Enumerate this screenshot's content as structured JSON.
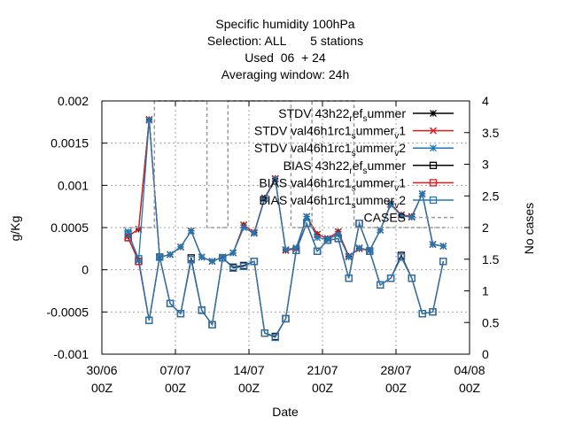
{
  "chart_data": {
    "type": "line",
    "title_lines": [
      "Specific humidity 100hPa",
      "Selection: ALL       5 stations",
      "Used  06  + 24",
      "Averaging window: 24h"
    ],
    "xlabel": "Date",
    "ylabel": "g/Kg",
    "y2label": "No cases",
    "x_ticks": [
      {
        "day": 0,
        "line1": "30/06",
        "line2": "00Z"
      },
      {
        "day": 7,
        "line1": "07/07",
        "line2": "00Z"
      },
      {
        "day": 14,
        "line1": "14/07",
        "line2": "00Z"
      },
      {
        "day": 21,
        "line1": "21/07",
        "line2": "00Z"
      },
      {
        "day": 28,
        "line1": "28/07",
        "line2": "00Z"
      },
      {
        "day": 35,
        "line1": "04/08",
        "line2": "00Z"
      }
    ],
    "xlim": [
      0,
      35
    ],
    "ylim": [
      -0.001,
      0.002
    ],
    "y_ticks": [
      "-0.001",
      "-0.0005",
      "0",
      "0.0005",
      "0.001",
      "0.0015",
      "0.002"
    ],
    "y2lim": [
      0,
      4
    ],
    "y2_ticks": [
      "0",
      "0.5",
      "1",
      "1.5",
      "2",
      "2.5",
      "3",
      "3.5",
      "4"
    ],
    "grid": true,
    "legend_position": "top-right",
    "x": [
      2.5,
      3.5,
      4.5,
      5.5,
      6.5,
      7.5,
      8.5,
      9.5,
      10.5,
      11.5,
      12.5,
      13.5,
      14.5,
      15.5,
      16.5,
      17.5,
      18.5,
      19.5,
      20.5,
      21.5,
      22.5,
      23.5,
      24.5,
      25.5,
      26.5,
      27.5,
      28.5,
      29.5,
      30.5,
      31.5,
      32.5
    ],
    "series": [
      {
        "name": "STDV 43h22_ref_summer",
        "label_parts": [
          "STDV 43h22",
          "r",
          "ef",
          "s",
          "ummer"
        ],
        "color": "#000000",
        "marker": "star",
        "axis": "y",
        "values": [
          0.0004,
          0.00048,
          0.00178,
          0.00015,
          0.00018,
          0.00027,
          0.00046,
          0.00015,
          0.0001,
          0.00015,
          0.0002,
          0.00053,
          0.00044,
          0.00085,
          0.00108,
          0.00023,
          0.00025,
          0.00063,
          0.00042,
          0.00037,
          0.00045,
          0.00016,
          0.00025,
          0.00023,
          0.00047,
          0.00078,
          0.00065,
          0.00063,
          0.0009,
          0.0003,
          0.00028
        ]
      },
      {
        "name": "STDV val46h1rc1_summer_v1",
        "label_parts": [
          "STDV val46h1rc1",
          "s",
          "ummer",
          "v",
          "1"
        ],
        "color": "#e41a1c",
        "marker": "x",
        "axis": "y",
        "values": [
          0.0004,
          0.00048,
          0.00178,
          0.00015,
          0.00018,
          0.00027,
          0.00046,
          0.00015,
          0.0001,
          0.00015,
          0.0002,
          0.00053,
          0.00044,
          0.00085,
          0.00108,
          0.00023,
          0.00025,
          0.00063,
          0.00042,
          0.00037,
          0.00045,
          0.00016,
          0.00025,
          0.00023,
          0.00047,
          0.00078,
          0.00065,
          0.00063,
          0.0009,
          0.0003,
          0.00028
        ]
      },
      {
        "name": "STDV val46h1rc1_summer_v2",
        "label_parts": [
          "STDV val46h1rc1",
          "s",
          "ummer",
          "v",
          "2"
        ],
        "color": "#1f78b4",
        "marker": "star",
        "axis": "y",
        "values": [
          0.00045,
          0.00011,
          0.00177,
          0.00015,
          0.00018,
          0.00027,
          0.00046,
          0.00015,
          0.0001,
          0.00015,
          0.0002,
          0.0005,
          0.00043,
          0.00084,
          0.00107,
          0.00024,
          0.00026,
          0.00063,
          0.00038,
          0.00036,
          0.00042,
          0.00015,
          0.00026,
          0.00023,
          0.00047,
          0.00077,
          0.00064,
          0.00062,
          0.0009,
          0.0003,
          0.00028
        ]
      },
      {
        "name": "BIAS 43h22_ref_summer",
        "label_parts": [
          "BIAS 43h22",
          "r",
          "ef",
          "s",
          "ummer"
        ],
        "color": "#000000",
        "marker": "square",
        "axis": "y",
        "values": [
          0.00038,
          0.0001,
          -0.0006,
          0.00015,
          -0.0004,
          -0.00052,
          0.00014,
          -0.00048,
          -0.00065,
          0.00014,
          3e-05,
          5e-05,
          0.0001,
          -0.00075,
          -0.00079,
          -0.00058,
          0.00023,
          0.00055,
          0.00022,
          0.00035,
          0.00037,
          -0.0001,
          0.00055,
          0.00022,
          -0.00018,
          -0.0001,
          0.00017,
          -0.0001,
          -0.00052,
          -0.0005,
          0.0001
        ]
      },
      {
        "name": "BIAS val46h1rc1_summer_v1",
        "label_parts": [
          "BIAS val46h1rc1",
          "s",
          "ummer",
          "v",
          "1"
        ],
        "color": "#e41a1c",
        "marker": "square",
        "axis": "y",
        "values": [
          0.00038,
          0.0001,
          -0.0006,
          0.00015,
          -0.0004,
          -0.00052,
          0.00012,
          -0.00048,
          -0.00065,
          0.00014,
          2e-05,
          4e-05,
          0.0001,
          -0.00075,
          -0.0008,
          -0.00058,
          0.00023,
          0.00055,
          0.00022,
          0.00035,
          0.00037,
          -0.0001,
          0.00055,
          0.00022,
          -0.00018,
          -0.0001,
          0.00015,
          -0.0001,
          -0.00052,
          -0.0005,
          0.0001
        ]
      },
      {
        "name": "BIAS val46h1rc1_summer_v2",
        "label_parts": [
          "BIAS val46h1rc1",
          "s",
          "ummer",
          "v",
          "2"
        ],
        "color": "#1f78b4",
        "marker": "square",
        "axis": "y",
        "values": [
          0.00043,
          0.00013,
          -0.0006,
          0.00015,
          -0.0004,
          -0.00052,
          0.00012,
          -0.00048,
          -0.00065,
          0.00014,
          2e-05,
          4e-05,
          0.0001,
          -0.00075,
          -0.0008,
          -0.00058,
          0.00023,
          0.00055,
          0.00022,
          0.00035,
          0.00037,
          -0.0001,
          0.00055,
          0.00022,
          -0.00018,
          -0.0001,
          0.00015,
          -0.0001,
          -0.00052,
          -0.0005,
          0.0001
        ]
      },
      {
        "name": "CASES",
        "label_parts": [
          "CASES"
        ],
        "color": "#999999",
        "marker": "none",
        "axis": "y2",
        "dashed": true,
        "values": [
          2,
          2,
          2,
          4,
          4,
          4,
          4,
          4,
          2,
          2,
          4,
          4,
          4,
          4,
          4,
          4,
          2,
          2,
          4,
          4,
          4,
          4,
          2,
          2,
          2,
          2,
          2,
          2,
          2,
          2,
          2
        ]
      }
    ]
  }
}
